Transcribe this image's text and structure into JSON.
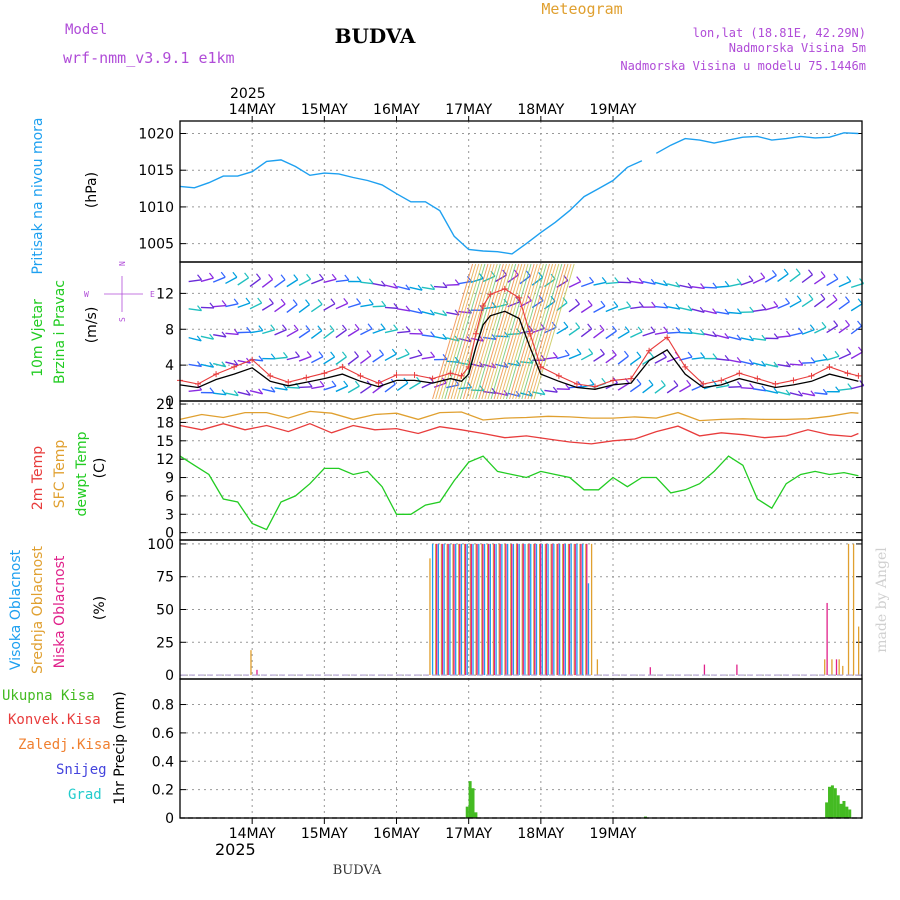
{
  "header": {
    "model_label": "Model",
    "model_name": "wrf-nmm_v3.9.1  e1km",
    "station": "BUDVA",
    "product": "Meteogram",
    "coords": "lon,lat (18.81E, 42.29N)",
    "elevation": "Nadmorska Visina 5m",
    "model_elevation": "Nadmorska Visina u modelu 75.1446m"
  },
  "footer": {
    "station": "BUDVA",
    "credit": "made by Angel"
  },
  "time_axis": {
    "year": "2025",
    "dates": [
      "14MAY",
      "15MAY",
      "16MAY",
      "17MAY",
      "18MAY",
      "19MAY"
    ]
  },
  "panels": {
    "pressure": {
      "label": "Pritisak na nivou mora",
      "unit": "(hPa)"
    },
    "wind": {
      "label1": "10m Vjetar",
      "label2": "Brzina i Pravac",
      "unit": "(m/s)",
      "compass": {
        "n": "N",
        "s": "S",
        "w": "W",
        "e": "E"
      }
    },
    "temp": {
      "label1": "2m Temp",
      "label2": "SFC Temp",
      "label3": "dewpt Temp",
      "unit": "(C)"
    },
    "cloud": {
      "label1": "Visoka Oblacnost",
      "label2": "Srednja Oblacnost",
      "label3": "Niska Oblacnost",
      "unit": "(%)"
    },
    "precip": {
      "legend": [
        "Ukupna Kisa",
        "Konvek.Kisa",
        "Zaledj.Kisa",
        "Snijeg",
        "Grad"
      ],
      "unit": "1hr Precip (mm)"
    }
  },
  "colors": {
    "pressure": "#1ea0f0",
    "wind_speed": "#000000",
    "gust": "#e83c3c",
    "temp2m": "#e83c3c",
    "sfc": "#e0a030",
    "dewpt": "#22cc22",
    "cloud_high": "#1ea0f0",
    "cloud_mid": "#e0a030",
    "cloud_low": "#e0208a",
    "rain": "#44bb22",
    "conv": "#e83c3c",
    "frz": "#f08030",
    "snow": "#4444dd",
    "hail": "#22cccc",
    "credit": "#d0d0d0"
  },
  "chart_data": [
    {
      "type": "line",
      "name": "pressure",
      "x_unit": "days after 13MAY 00Z",
      "ylabel": "(hPa)",
      "ylim": [
        1002.5,
        1021.7
      ],
      "yticks": [
        1005,
        1010,
        1015,
        1020
      ],
      "grid": true,
      "series": [
        {
          "x": [
            0.0,
            0.2,
            0.4,
            0.6,
            0.8,
            1.0,
            1.2,
            1.4,
            1.6,
            1.8,
            2.0,
            2.2,
            2.4,
            2.6,
            2.8,
            3.0,
            3.2,
            3.4,
            3.6,
            3.8,
            4.0,
            4.2,
            4.4,
            4.6,
            4.8,
            5.0,
            5.2,
            5.4,
            5.6,
            5.8,
            6.0,
            6.2,
            6.4
          ],
          "y": [
            1012.8,
            1012.6,
            1013.3,
            1014.2,
            1014.2,
            1014.8,
            1016.2,
            1016.4,
            1015.5,
            1014.3,
            1014.6,
            1014.5,
            1014.0,
            1013.6,
            1013.0,
            1011.8,
            1010.7,
            1010.7,
            1009.5,
            1006.0,
            1004.2,
            1004.0,
            1003.9,
            1003.6,
            1005.0,
            1006.5,
            1007.9,
            1009.5,
            1011.4,
            1012.5,
            1013.6,
            1015.4,
            1016.3
          ]
        },
        {
          "x": [
            6.6,
            6.8,
            7.0,
            7.2,
            7.4,
            7.6,
            7.8,
            8.0,
            8.2,
            8.4,
            8.6,
            8.8,
            9.0,
            9.2,
            9.4
          ],
          "y": [
            1017.3,
            1018.4,
            1019.3,
            1019.1,
            1018.7,
            1019.1,
            1019.5,
            1019.6,
            1019.1,
            1019.3,
            1019.6,
            1019.4,
            1019.5,
            1020.1,
            1020.0
          ]
        }
      ]
    },
    {
      "type": "line",
      "name": "wind",
      "x_unit": "days after 13MAY 00Z",
      "ylabel": "(m/s)",
      "ylim": [
        0,
        15.5
      ],
      "yticks": [
        0,
        4,
        8,
        12
      ],
      "series": [
        {
          "name": "speed",
          "x": [
            0.0,
            0.25,
            0.5,
            0.75,
            1.0,
            1.25,
            1.5,
            1.75,
            2.0,
            2.25,
            2.5,
            2.75,
            3.0,
            3.25,
            3.5,
            3.75,
            3.9,
            4.0,
            4.1,
            4.2,
            4.3,
            4.5,
            4.7,
            4.85,
            5.0,
            5.25,
            5.5,
            5.75,
            6.0,
            6.25,
            6.5,
            6.75,
            7.0,
            7.25,
            7.5,
            7.75,
            8.0,
            8.25,
            8.5,
            8.75,
            9.0,
            9.25,
            9.4
          ],
          "y": [
            1.8,
            1.5,
            2.4,
            3.0,
            3.7,
            2.2,
            1.7,
            2.1,
            2.5,
            3.0,
            2.2,
            1.6,
            2.3,
            2.3,
            2.0,
            2.5,
            2.2,
            3.0,
            6.0,
            8.5,
            9.5,
            10.0,
            9.2,
            6.0,
            3.0,
            2.2,
            1.5,
            1.3,
            1.8,
            2.0,
            4.5,
            5.7,
            3.0,
            1.5,
            1.8,
            2.5,
            2.0,
            1.5,
            1.8,
            2.2,
            3.0,
            2.5,
            2.2
          ]
        },
        {
          "name": "gust",
          "x": [
            0.0,
            0.25,
            0.5,
            0.75,
            1.0,
            1.25,
            1.5,
            1.75,
            2.0,
            2.25,
            2.5,
            2.75,
            3.0,
            3.25,
            3.5,
            3.75,
            3.9,
            4.0,
            4.1,
            4.2,
            4.3,
            4.5,
            4.7,
            4.85,
            5.0,
            5.25,
            5.5,
            5.75,
            6.0,
            6.25,
            6.5,
            6.75,
            7.0,
            7.25,
            7.5,
            7.75,
            8.0,
            8.25,
            8.5,
            8.75,
            9.0,
            9.25,
            9.4
          ],
          "y": [
            2.3,
            1.9,
            3.0,
            3.8,
            4.6,
            2.8,
            2.1,
            2.6,
            3.1,
            3.8,
            2.8,
            2.0,
            2.9,
            2.9,
            2.5,
            3.1,
            2.8,
            3.8,
            7.5,
            10.6,
            11.9,
            12.5,
            11.5,
            7.5,
            3.8,
            2.8,
            1.9,
            1.6,
            2.3,
            2.5,
            5.6,
            7.1,
            3.8,
            1.9,
            2.3,
            3.1,
            2.5,
            1.9,
            2.3,
            2.8,
            3.8,
            3.1,
            2.8
          ]
        }
      ]
    },
    {
      "type": "line",
      "name": "temperature",
      "x_unit": "days after 13MAY 00Z",
      "ylabel": "(C)",
      "ylim": [
        -1.2,
        21.5
      ],
      "yticks": [
        0,
        3,
        6,
        9,
        12,
        15,
        18,
        21
      ],
      "series": [
        {
          "name": "2m",
          "x": [
            0.0,
            0.3,
            0.6,
            0.9,
            1.2,
            1.5,
            1.8,
            2.1,
            2.4,
            2.7,
            3.0,
            3.3,
            3.6,
            3.9,
            4.2,
            4.5,
            4.8,
            5.1,
            5.4,
            5.7,
            6.0,
            6.3,
            6.6,
            6.9,
            7.2,
            7.5,
            7.8,
            8.1,
            8.4,
            8.7,
            9.0,
            9.3,
            9.4
          ],
          "y": [
            17.5,
            16.8,
            17.8,
            16.8,
            17.5,
            16.5,
            17.8,
            16.3,
            17.5,
            16.8,
            17.0,
            16.2,
            17.3,
            16.8,
            16.2,
            15.5,
            15.8,
            15.3,
            14.8,
            14.5,
            15.0,
            15.3,
            16.5,
            17.4,
            15.8,
            16.3,
            16.0,
            15.5,
            15.8,
            16.8,
            16.0,
            15.7,
            16.2
          ]
        },
        {
          "name": "sfc",
          "x": [
            0.0,
            0.3,
            0.6,
            0.9,
            1.2,
            1.5,
            1.8,
            2.1,
            2.4,
            2.7,
            3.0,
            3.3,
            3.6,
            3.9,
            4.2,
            4.5,
            4.8,
            5.1,
            5.4,
            5.7,
            6.0,
            6.3,
            6.6,
            6.9,
            7.2,
            7.5,
            7.8,
            8.1,
            8.4,
            8.7,
            9.0,
            9.3,
            9.4
          ],
          "y": [
            18.5,
            19.3,
            18.8,
            19.6,
            19.6,
            18.7,
            19.8,
            19.5,
            18.5,
            19.3,
            19.5,
            18.5,
            19.6,
            19.7,
            18.4,
            18.7,
            18.8,
            19.0,
            18.9,
            18.7,
            18.7,
            18.9,
            18.7,
            19.6,
            18.3,
            18.5,
            18.6,
            18.5,
            18.5,
            18.6,
            19.0,
            19.6,
            19.5
          ]
        },
        {
          "name": "dewpt",
          "x": [
            0.0,
            0.2,
            0.4,
            0.6,
            0.8,
            1.0,
            1.2,
            1.4,
            1.6,
            1.8,
            2.0,
            2.2,
            2.4,
            2.6,
            2.8,
            3.0,
            3.2,
            3.4,
            3.6,
            3.8,
            4.0,
            4.2,
            4.4,
            4.6,
            4.8,
            5.0,
            5.2,
            5.4,
            5.6,
            5.8,
            6.0,
            6.2,
            6.4,
            6.6,
            6.8,
            7.0,
            7.2,
            7.4,
            7.6,
            7.8,
            8.0,
            8.2,
            8.4,
            8.6,
            8.8,
            9.0,
            9.2,
            9.4
          ],
          "y": [
            12.5,
            11.0,
            9.5,
            5.5,
            5.0,
            1.5,
            0.5,
            5.0,
            6.0,
            8.0,
            10.5,
            10.5,
            9.5,
            10.0,
            7.5,
            3.0,
            3.0,
            4.5,
            5.0,
            8.5,
            11.5,
            12.5,
            10.0,
            9.5,
            9.0,
            10.0,
            9.5,
            9.0,
            7.0,
            7.0,
            9.0,
            7.5,
            9.0,
            9.0,
            6.5,
            7.0,
            8.0,
            10.0,
            12.5,
            11.0,
            5.5,
            4.0,
            8.0,
            9.5,
            10.0,
            9.5,
            9.8,
            9.3
          ]
        }
      ]
    },
    {
      "type": "bar",
      "name": "cloudiness",
      "x_unit": "days after 13MAY 00Z",
      "ylabel": "(%)",
      "ylim": [
        -3,
        103
      ],
      "yticks": [
        0,
        25,
        50,
        75,
        100
      ],
      "series": [
        {
          "name": "high",
          "x": [
            3.5,
            3.58,
            3.66,
            3.74,
            3.82,
            3.9,
            3.98,
            4.06,
            4.14,
            4.22,
            4.3,
            4.38,
            4.46,
            4.54,
            4.62,
            4.7,
            4.78,
            4.86,
            4.94,
            5.02,
            5.1,
            5.18,
            5.26,
            5.34,
            5.42,
            5.5,
            5.58,
            5.66
          ],
          "y": [
            100,
            100,
            100,
            100,
            100,
            100,
            100,
            100,
            100,
            100,
            100,
            100,
            100,
            100,
            100,
            100,
            100,
            100,
            100,
            100,
            100,
            100,
            100,
            100,
            100,
            100,
            100,
            70
          ]
        },
        {
          "name": "mid",
          "x": [
            1.0,
            3.48,
            3.56,
            3.64,
            3.72,
            3.8,
            3.88,
            3.96,
            4.04,
            4.12,
            4.2,
            4.28,
            4.36,
            4.44,
            4.52,
            4.6,
            4.68,
            4.76,
            4.84,
            4.92,
            5.0,
            5.08,
            5.16,
            5.24,
            5.32,
            5.4,
            5.48,
            5.56,
            5.64,
            5.72,
            5.8,
            8.95,
            9.05,
            9.15,
            9.2,
            9.28,
            9.35,
            9.42
          ],
          "y": [
            19,
            89,
            100,
            100,
            100,
            100,
            100,
            100,
            100,
            100,
            100,
            100,
            100,
            100,
            100,
            100,
            100,
            100,
            100,
            100,
            100,
            100,
            100,
            100,
            100,
            100,
            100,
            100,
            100,
            100,
            12,
            12,
            12,
            12,
            7,
            100,
            100,
            37
          ]
        },
        {
          "name": "low",
          "x": [
            1.05,
            3.54,
            3.62,
            3.7,
            3.78,
            3.86,
            3.94,
            4.02,
            4.1,
            4.18,
            4.26,
            4.34,
            4.42,
            4.5,
            4.58,
            4.66,
            4.74,
            4.82,
            4.9,
            4.98,
            5.06,
            5.14,
            5.22,
            5.3,
            5.38,
            5.46,
            5.54,
            5.62,
            6.5,
            7.25,
            7.7,
            8.95,
            9.08
          ],
          "y": [
            4,
            100,
            100,
            100,
            100,
            100,
            100,
            100,
            100,
            100,
            100,
            100,
            100,
            100,
            100,
            100,
            100,
            100,
            100,
            100,
            100,
            100,
            100,
            100,
            100,
            100,
            100,
            100,
            6,
            8,
            8,
            55,
            12
          ]
        }
      ]
    },
    {
      "type": "bar",
      "name": "precipitation",
      "x_unit": "days after 13MAY 00Z",
      "ylabel": "1hr Precip (mm)",
      "ylim": [
        0,
        0.98
      ],
      "yticks": [
        0,
        0.2,
        0.4,
        0.6,
        0.8
      ],
      "series": [
        {
          "name": "Ukupna Kisa",
          "x": [
            3.98,
            4.02,
            4.06,
            4.1,
            6.45,
            8.96,
            9.0,
            9.04,
            9.08,
            9.12,
            9.16,
            9.2,
            9.24,
            9.28
          ],
          "y": [
            0.08,
            0.26,
            0.21,
            0.04,
            0.01,
            0.11,
            0.22,
            0.23,
            0.21,
            0.16,
            0.1,
            0.12,
            0.08,
            0.06
          ]
        },
        {
          "name": "Konvek.Kisa",
          "x": [],
          "y": []
        },
        {
          "name": "Zaledj.Kisa",
          "x": [],
          "y": []
        },
        {
          "name": "Snijeg",
          "x": [],
          "y": []
        },
        {
          "name": "Grad",
          "x": [],
          "y": []
        }
      ]
    }
  ]
}
